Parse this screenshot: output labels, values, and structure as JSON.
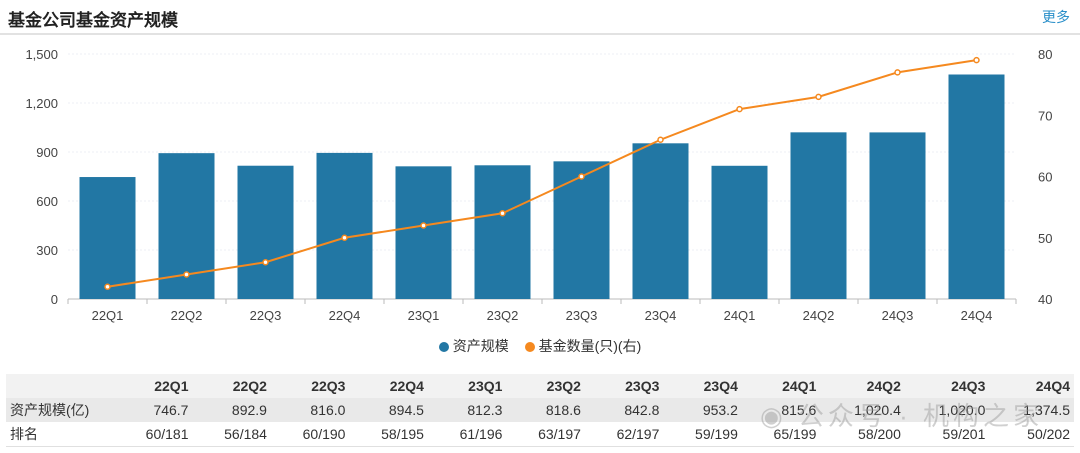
{
  "header": {
    "title": "基金公司基金资产规模",
    "more_label": "更多"
  },
  "chart_data": {
    "type": "bar+line",
    "categories": [
      "22Q1",
      "22Q2",
      "22Q3",
      "22Q4",
      "23Q1",
      "23Q2",
      "23Q3",
      "23Q4",
      "24Q1",
      "24Q2",
      "24Q3",
      "24Q4"
    ],
    "series": [
      {
        "name": "资产规模",
        "type": "bar",
        "axis": "left",
        "color": "#2277a4",
        "values": [
          746.7,
          892.9,
          816.0,
          894.5,
          812.3,
          818.6,
          842.8,
          953.2,
          815.6,
          1020.4,
          1020.0,
          1374.5
        ]
      },
      {
        "name": "基金数量(只)(右)",
        "type": "line",
        "axis": "right",
        "color": "#f5891f",
        "values": [
          42,
          44,
          46,
          50,
          52,
          54,
          60,
          66,
          71,
          73,
          77,
          79
        ]
      }
    ],
    "left_axis": {
      "ylim": [
        0,
        1500
      ],
      "ticks": [
        "0",
        "300",
        "600",
        "900",
        "1,200",
        "1,500"
      ]
    },
    "right_axis": {
      "ylim": [
        40,
        80
      ],
      "ticks": [
        "40",
        "50",
        "60",
        "70",
        "80"
      ]
    },
    "grid": true,
    "legend": "bottom"
  },
  "table": {
    "headers": [
      "",
      "22Q1",
      "22Q2",
      "22Q3",
      "22Q4",
      "23Q1",
      "23Q2",
      "23Q3",
      "23Q4",
      "24Q1",
      "24Q2",
      "24Q3",
      "24Q4"
    ],
    "rows": [
      [
        "资产规模(亿)",
        "746.7",
        "892.9",
        "816.0",
        "894.5",
        "812.3",
        "818.6",
        "842.8",
        "953.2",
        "815.6",
        "1,020.4",
        "1,020.0",
        "1,374.5"
      ],
      [
        "排名",
        "60/181",
        "56/184",
        "60/190",
        "58/195",
        "61/196",
        "63/197",
        "62/197",
        "59/199",
        "65/199",
        "58/200",
        "59/201",
        "50/202"
      ]
    ]
  },
  "watermark": "公众号 · 机构之家"
}
